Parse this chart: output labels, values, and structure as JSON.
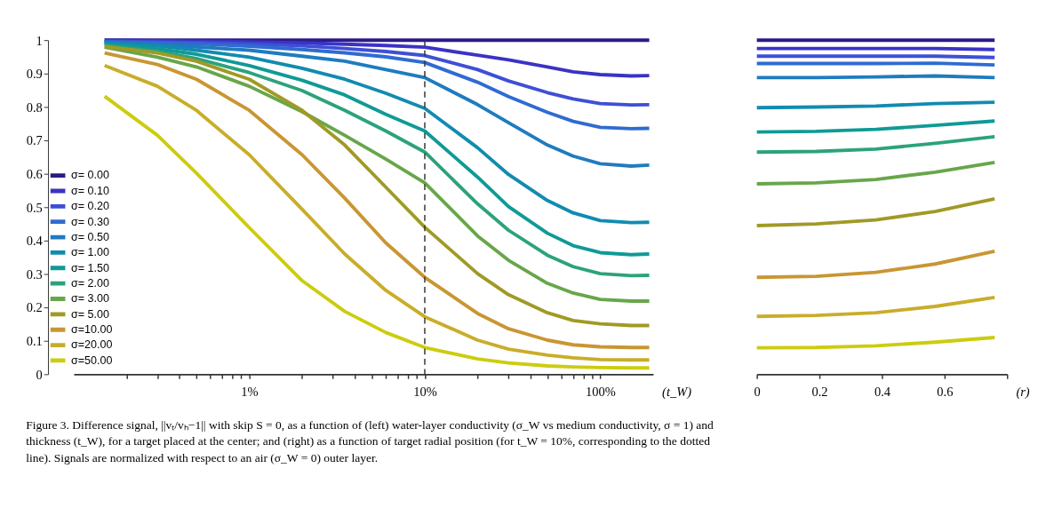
{
  "chart_data": [
    {
      "type": "line",
      "log": "x",
      "xlabel": "(t_W)",
      "legend": "bottom left",
      "grid": false,
      "x": [
        0.15,
        0.3,
        0.5,
        1,
        2,
        3.5,
        6,
        10,
        20,
        30,
        50,
        70,
        100,
        150,
        190
      ],
      "xlim": [
        0.1,
        200
      ],
      "xticks": [
        {
          "value": 0.2,
          "label": null
        },
        {
          "value": 0.3,
          "label": null
        },
        {
          "value": 0.4,
          "label": null
        },
        {
          "value": 0.5,
          "label": null
        },
        {
          "value": 0.6,
          "label": null
        },
        {
          "value": 0.7,
          "label": null
        },
        {
          "value": 0.8,
          "label": null
        },
        {
          "value": 0.9,
          "label": null
        },
        {
          "value": 1,
          "label": "1%"
        },
        {
          "value": 2,
          "label": null
        },
        {
          "value": 3,
          "label": null
        },
        {
          "value": 4,
          "label": null
        },
        {
          "value": 5,
          "label": null
        },
        {
          "value": 6,
          "label": null
        },
        {
          "value": 7,
          "label": null
        },
        {
          "value": 8,
          "label": null
        },
        {
          "value": 9,
          "label": null
        },
        {
          "value": 10,
          "label": "10%"
        },
        {
          "value": 20,
          "label": null
        },
        {
          "value": 30,
          "label": null
        },
        {
          "value": 40,
          "label": null
        },
        {
          "value": 50,
          "label": null
        },
        {
          "value": 60,
          "label": null
        },
        {
          "value": 70,
          "label": null
        },
        {
          "value": 80,
          "label": null
        },
        {
          "value": 90,
          "label": null
        },
        {
          "value": 100,
          "label": "100%"
        }
      ],
      "ylim": [
        0,
        1
      ],
      "yticks": [
        0,
        0.1,
        0.2,
        0.3,
        0.4,
        0.5,
        0.6,
        0.7,
        0.8,
        0.9,
        1
      ],
      "ref_lines": [
        {
          "axis": "x",
          "value": 10,
          "color": "#333333",
          "line_style": "dashed"
        }
      ],
      "annotations": [
        "Figure 3. Difference signal, ||vₜ/vₕ−1|| with skip S = 0, as a function of (left) water-layer conductivity (σ_W vs medium conductivity, σ = 1) and thickness (t_W), for a target placed at the center; and (right) as a function of target radial position (for t_W = 10%, corresponding to the dotted line). Signals are normalized with respect to an air (σ_W = 0) outer layer."
      ],
      "series": [
        {
          "name": "σ=  0.00",
          "color": "#2c1b87",
          "values": [
            1,
            1,
            1,
            1,
            1,
            1,
            1,
            1,
            1,
            1,
            1,
            1,
            1,
            1,
            1
          ]
        },
        {
          "name": "σ=  0.10",
          "color": "#3a33c4",
          "values": [
            1.0,
            0.998,
            0.997,
            0.995,
            0.992,
            0.988,
            0.984,
            0.979,
            0.955,
            0.941,
            0.92,
            0.905,
            0.897,
            0.893,
            0.894
          ]
        },
        {
          "name": "σ=  0.20",
          "color": "#3e4fd6",
          "values": [
            0.997,
            0.995,
            0.993,
            0.989,
            0.983,
            0.975,
            0.966,
            0.954,
            0.912,
            0.878,
            0.843,
            0.824,
            0.81,
            0.806,
            0.807
          ]
        },
        {
          "name": "σ=  0.30",
          "color": "#2f6bd1",
          "values": [
            0.995,
            0.992,
            0.989,
            0.982,
            0.972,
            0.962,
            0.95,
            0.933,
            0.874,
            0.831,
            0.784,
            0.757,
            0.739,
            0.735,
            0.736
          ]
        },
        {
          "name": "σ=  0.50",
          "color": "#1f7bbf",
          "values": [
            0.994,
            0.987,
            0.98,
            0.97,
            0.952,
            0.937,
            0.912,
            0.888,
            0.807,
            0.753,
            0.686,
            0.653,
            0.63,
            0.623,
            0.626
          ]
        },
        {
          "name": "σ=  1.00",
          "color": "#128bb0",
          "values": [
            0.991,
            0.983,
            0.97,
            0.949,
            0.916,
            0.883,
            0.841,
            0.796,
            0.678,
            0.598,
            0.52,
            0.483,
            0.46,
            0.454,
            0.455
          ]
        },
        {
          "name": "σ=  1.50",
          "color": "#0f9a96",
          "values": [
            0.989,
            0.974,
            0.958,
            0.924,
            0.88,
            0.836,
            0.778,
            0.728,
            0.59,
            0.502,
            0.422,
            0.385,
            0.364,
            0.358,
            0.36
          ]
        },
        {
          "name": "σ=  2.00",
          "color": "#2ca27b",
          "values": [
            0.985,
            0.966,
            0.945,
            0.903,
            0.849,
            0.79,
            0.728,
            0.665,
            0.51,
            0.431,
            0.356,
            0.322,
            0.301,
            0.295,
            0.296
          ]
        },
        {
          "name": "σ=  3.00",
          "color": "#68a64a",
          "values": [
            0.979,
            0.949,
            0.92,
            0.862,
            0.786,
            0.715,
            0.644,
            0.573,
            0.414,
            0.341,
            0.272,
            0.243,
            0.224,
            0.219,
            0.219
          ]
        },
        {
          "name": "σ=  5.00",
          "color": "#a09a26",
          "values": [
            0.981,
            0.962,
            0.937,
            0.883,
            0.79,
            0.686,
            0.56,
            0.44,
            0.301,
            0.238,
            0.184,
            0.161,
            0.151,
            0.146,
            0.146
          ]
        },
        {
          "name": "σ=10.00",
          "color": "#c99633",
          "values": [
            0.962,
            0.927,
            0.883,
            0.79,
            0.657,
            0.527,
            0.393,
            0.29,
            0.182,
            0.136,
            0.102,
            0.088,
            0.082,
            0.08,
            0.08
          ]
        },
        {
          "name": "σ=20.00",
          "color": "#c9ad2a",
          "values": [
            0.924,
            0.862,
            0.79,
            0.657,
            0.494,
            0.36,
            0.251,
            0.172,
            0.102,
            0.075,
            0.057,
            0.049,
            0.044,
            0.043,
            0.043
          ]
        },
        {
          "name": "σ=50.00",
          "color": "#cccc10",
          "values": [
            0.832,
            0.715,
            0.602,
            0.439,
            0.28,
            0.188,
            0.125,
            0.08,
            0.046,
            0.034,
            0.025,
            0.022,
            0.02,
            0.019,
            0.019
          ]
        }
      ]
    },
    {
      "type": "line",
      "xlabel": "(r)",
      "tick_labels": "x",
      "grid": false,
      "x": [
        0,
        0.19,
        0.38,
        0.57,
        0.76
      ],
      "xlim": [
        0,
        0.8
      ],
      "xticks": [
        0,
        0.2,
        0.4,
        0.6,
        {
          "value": 0.8,
          "label": null
        }
      ],
      "ylim": [
        0,
        1
      ],
      "series": [
        {
          "color": "#2c1b87",
          "values": [
            1,
            1,
            1,
            1,
            1
          ]
        },
        {
          "color": "#3a33c4",
          "values": [
            0.975,
            0.975,
            0.975,
            0.975,
            0.972
          ]
        },
        {
          "color": "#3e4fd6",
          "values": [
            0.952,
            0.952,
            0.952,
            0.952,
            0.948
          ]
        },
        {
          "color": "#2f6bd1",
          "values": [
            0.93,
            0.93,
            0.93,
            0.931,
            0.926
          ]
        },
        {
          "color": "#1f7bbf",
          "values": [
            0.888,
            0.888,
            0.89,
            0.893,
            0.888
          ]
        },
        {
          "color": "#128bb0",
          "values": [
            0.798,
            0.8,
            0.803,
            0.81,
            0.814
          ]
        },
        {
          "color": "#0f9a96",
          "values": [
            0.725,
            0.727,
            0.733,
            0.745,
            0.758
          ]
        },
        {
          "color": "#2ca27b",
          "values": [
            0.665,
            0.667,
            0.674,
            0.691,
            0.711
          ]
        },
        {
          "color": "#68a64a",
          "values": [
            0.57,
            0.573,
            0.583,
            0.605,
            0.634
          ]
        },
        {
          "color": "#a09a26",
          "values": [
            0.445,
            0.45,
            0.462,
            0.487,
            0.525
          ]
        },
        {
          "color": "#c99633",
          "values": [
            0.29,
            0.293,
            0.305,
            0.33,
            0.368
          ]
        },
        {
          "color": "#c9ad2a",
          "values": [
            0.173,
            0.176,
            0.184,
            0.203,
            0.23
          ]
        },
        {
          "color": "#cccc10",
          "values": [
            0.079,
            0.08,
            0.085,
            0.096,
            0.11
          ]
        }
      ]
    }
  ]
}
